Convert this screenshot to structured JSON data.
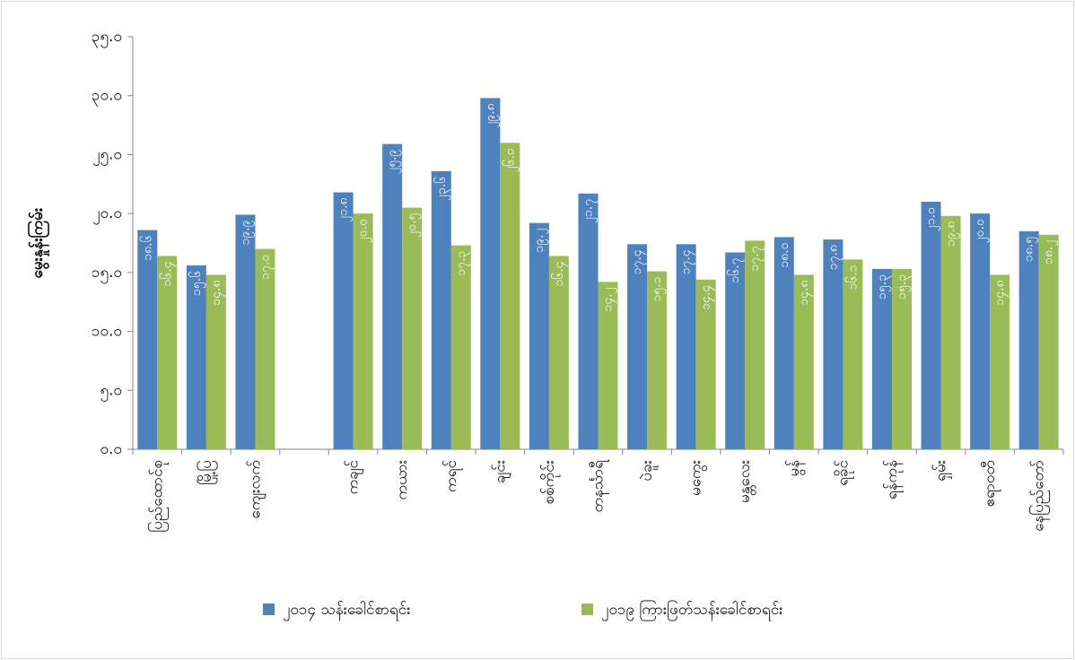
{
  "chart_data": {
    "type": "bar",
    "y_label": "မွေးနှုန်းကြမ်း",
    "categories": [
      "ပြည်ထောင်စု",
      "မြို့ပြ",
      "ကျေးလက်",
      null,
      "ကချင်",
      "ကယား",
      "ကရင်",
      "ချင်း",
      "စစ်ကိုင်း",
      "တနင်္သာရီ",
      "ပဲခူး",
      "မကွေး",
      "မန္တလေး",
      "မွန်",
      "ရခိုင်",
      "ရန်ကုန်",
      "ရှမ်း",
      "ဧရာဝတီ",
      "နေပြည်တော်"
    ],
    "series": [
      {
        "name": "၂၀၁၄ သန်းခေါင်စာရင်း",
        "color": "#4f81bd",
        "values": [
          18.6,
          15.6,
          19.9,
          null,
          21.8,
          25.9,
          23.6,
          29.8,
          19.2,
          21.7,
          17.4,
          17.4,
          16.7,
          18.0,
          17.8,
          15.3,
          21.0,
          20.0,
          18.5
        ],
        "value_labels": [
          "၁၈.၆",
          "၁၅.၆",
          "၁၉.၉",
          null,
          "၂၁.၈",
          "၂၅.၉",
          "၂၃.၆",
          "၂၉.၈",
          "၁၉.၂",
          "၂၁.၇",
          "၁၇.၄",
          "၁၇.၄",
          "၁၆.၇",
          "၁၈.၀",
          "၁၇.၈",
          "၁၅.၃",
          "၂၁.၀",
          "၂၀.၀",
          "၁၈.၅"
        ]
      },
      {
        "name": "၂၀၁၉ ကြားဖြတ်သန်းခေါင်စာရင်း",
        "color": "#9bbb59",
        "values": [
          16.4,
          14.8,
          17.0,
          null,
          20.0,
          20.5,
          17.3,
          26.0,
          16.4,
          14.2,
          15.1,
          14.4,
          17.7,
          14.8,
          16.1,
          15.3,
          19.8,
          14.8,
          18.2
        ],
        "value_labels": [
          "၁၆.၄",
          "၁၄.၈",
          "၁၇.၀",
          null,
          "၂၀.၀",
          "၂၀.၅",
          "၁၇.၃",
          "၂၆.၀",
          "၁၆.၄",
          "၁၄.၂",
          "၁၅.၁",
          "၁၄.၄",
          "၁၇.၇",
          "၁၄.၈",
          "၁၆.၁",
          "၁၅.၃",
          "၁၉.၈",
          "၁၄.၈",
          "၁၈.၂"
        ]
      }
    ],
    "ylim": [
      0,
      35
    ],
    "yticks": [
      {
        "value": 0,
        "label": "၀.၀"
      },
      {
        "value": 5,
        "label": "၅.၀"
      },
      {
        "value": 10,
        "label": "၁၀.၀"
      },
      {
        "value": 15,
        "label": "၁၅.၀"
      },
      {
        "value": 20,
        "label": "၂၀.၀"
      },
      {
        "value": 25,
        "label": "၂၅.၀"
      },
      {
        "value": 30,
        "label": "၃၀.၀"
      },
      {
        "value": 35,
        "label": "၃၅.၀"
      }
    ],
    "grid": false
  }
}
